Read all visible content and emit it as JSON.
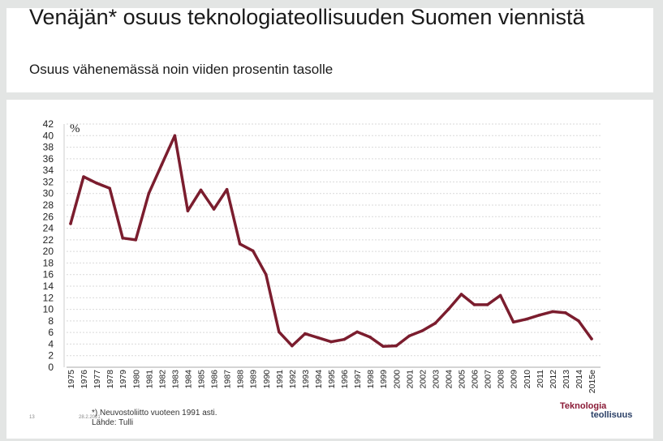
{
  "title": "Venäjän* osuus teknologiateollisuuden Suomen viennistä",
  "subtitle": "Osuus vähenemässä noin viiden prosentin tasolle",
  "footnote_line1": "*) Neuvostoliitto vuoteen 1991 asti.",
  "footnote_line2": "Lähde: Tulli",
  "page_number": "13",
  "date": "28.2.2021",
  "logo_line1": "Teknologia",
  "logo_line2": "teollisuus",
  "colors": {
    "line": "#7b1d2e",
    "background": "#e3e5e4",
    "grid": "#d9d9d9"
  },
  "chart_data": {
    "type": "line",
    "title": "",
    "unit_label": "%",
    "xlabel": "",
    "ylabel": "",
    "ylim": [
      0,
      42
    ],
    "ytick_step": 2,
    "grid": true,
    "categories": [
      "1975",
      "1976",
      "1977",
      "1978",
      "1979",
      "1980",
      "1981",
      "1982",
      "1983",
      "1984",
      "1985",
      "1986",
      "1987",
      "1988",
      "1989",
      "1990",
      "1991",
      "1992",
      "1993",
      "1994",
      "1995",
      "1996",
      "1997",
      "1998",
      "1999",
      "2000",
      "2001",
      "2002",
      "2003",
      "2004",
      "2005",
      "2006",
      "2007",
      "2008",
      "2009",
      "2010",
      "2011",
      "2012",
      "2013",
      "2014",
      "2015e"
    ],
    "series": [
      {
        "name": "Venäjän osuus",
        "values": [
          24.8,
          32.9,
          31.8,
          30.9,
          22.3,
          22.0,
          30.0,
          35.0,
          40.0,
          27.0,
          30.6,
          27.3,
          30.7,
          21.3,
          20.1,
          16.0,
          6.1,
          3.7,
          5.8,
          5.1,
          4.4,
          4.8,
          6.1,
          5.2,
          3.6,
          3.7,
          5.4,
          6.3,
          7.6,
          10.0,
          12.6,
          10.8,
          10.8,
          12.4,
          7.8,
          8.3,
          9.0,
          9.6,
          9.4,
          8.0,
          4.9
        ]
      }
    ]
  }
}
